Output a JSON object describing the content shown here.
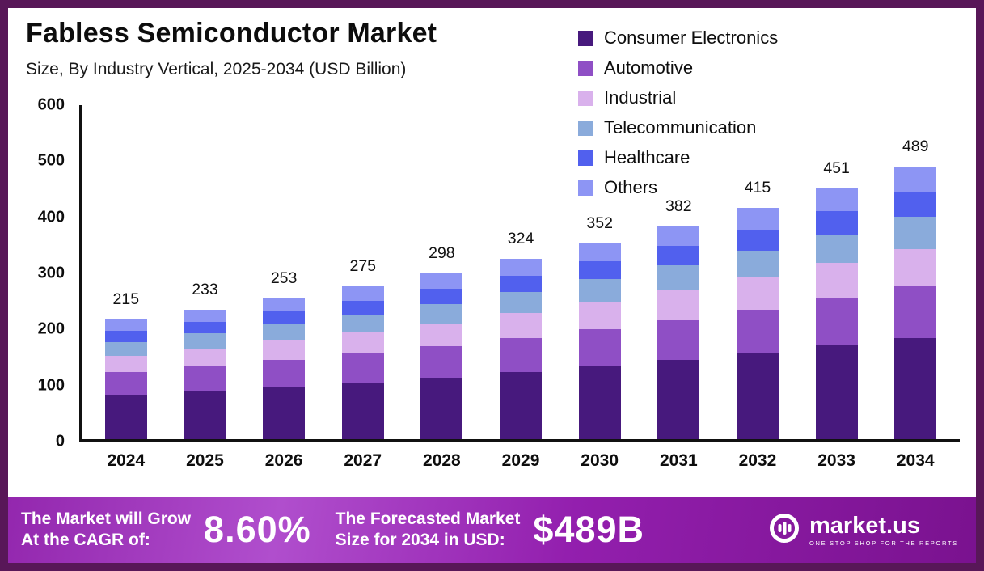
{
  "frame": {
    "border_color": "#581758",
    "background": "#ffffff",
    "footer_gradient": [
      "#9327ae",
      "#b04ecd",
      "#7a128f"
    ]
  },
  "header": {
    "title": "Fabless Semiconductor Market",
    "subtitle": "Size, By Industry Vertical, 2025-2034 (USD Billion)"
  },
  "chart_data": {
    "type": "bar",
    "stacked": true,
    "title": "Fabless Semiconductor Market",
    "subtitle": "Size, By Industry Vertical, 2025-2034 (USD Billion)",
    "categories": [
      "2024",
      "2025",
      "2026",
      "2027",
      "2028",
      "2029",
      "2030",
      "2031",
      "2032",
      "2033",
      "2034"
    ],
    "totals": [
      215,
      233,
      253,
      275,
      298,
      324,
      352,
      382,
      415,
      451,
      489
    ],
    "series": [
      {
        "name": "Consumer Electronics",
        "color": "#47197d",
        "values": [
          80,
          87,
          94,
          102,
          111,
          121,
          131,
          142,
          155,
          168,
          182
        ]
      },
      {
        "name": "Automotive",
        "color": "#8f4fc5",
        "values": [
          40,
          44,
          48,
          52,
          56,
          61,
          66,
          72,
          78,
          85,
          92
        ]
      },
      {
        "name": "Industrial",
        "color": "#d9b1ec",
        "values": [
          30,
          32,
          35,
          38,
          41,
          45,
          49,
          53,
          58,
          63,
          68
        ]
      },
      {
        "name": "Telecommunication",
        "color": "#8aabdb",
        "values": [
          25,
          27,
          29,
          32,
          35,
          38,
          41,
          45,
          48,
          52,
          57
        ]
      },
      {
        "name": "Healthcare",
        "color": "#5160ee",
        "values": [
          20,
          21,
          23,
          25,
          27,
          29,
          32,
          35,
          38,
          41,
          45
        ]
      },
      {
        "name": "Others",
        "color": "#8d95f4",
        "values": [
          20,
          22,
          24,
          26,
          28,
          30,
          33,
          35,
          38,
          42,
          45
        ]
      }
    ],
    "xlabel": "",
    "ylabel": "",
    "yticks": [
      0,
      100,
      200,
      300,
      400,
      500,
      600
    ],
    "ylim": [
      0,
      600
    ],
    "grid": false,
    "legend_position": "top-right",
    "value_labels": "above-bars"
  },
  "footer": {
    "cagr_label_line1": "The Market will Grow",
    "cagr_label_line2": "At the CAGR of:",
    "cagr_value": "8.60%",
    "forecast_label_line1": "The Forecasted Market",
    "forecast_label_line2": "Size for 2034 in USD:",
    "forecast_value": "$489B",
    "brand_name": "market.us",
    "brand_tagline": "ONE STOP SHOP FOR THE REPORTS"
  }
}
